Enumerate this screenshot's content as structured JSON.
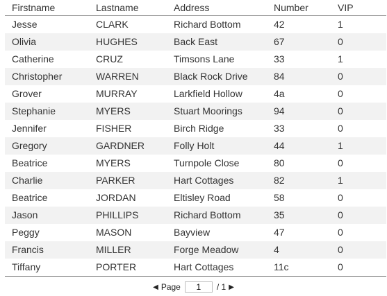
{
  "columns": {
    "firstname": "Firstname",
    "lastname": "Lastname",
    "address": "Address",
    "number": "Number",
    "vip": "VIP"
  },
  "rows": [
    {
      "firstname": "Jesse",
      "lastname": "CLARK",
      "address": "Richard Bottom",
      "number": "42",
      "vip": "1"
    },
    {
      "firstname": "Olivia",
      "lastname": "HUGHES",
      "address": "Back East",
      "number": "67",
      "vip": "0"
    },
    {
      "firstname": "Catherine",
      "lastname": "CRUZ",
      "address": "Timsons Lane",
      "number": "33",
      "vip": "1"
    },
    {
      "firstname": "Christopher",
      "lastname": "WARREN",
      "address": "Black Rock Drive",
      "number": "84",
      "vip": "0"
    },
    {
      "firstname": "Grover",
      "lastname": "MURRAY",
      "address": "Larkfield Hollow",
      "number": "4a",
      "vip": "0"
    },
    {
      "firstname": "Stephanie",
      "lastname": "MYERS",
      "address": "Stuart Moorings",
      "number": "94",
      "vip": "0"
    },
    {
      "firstname": "Jennifer",
      "lastname": "FISHER",
      "address": "Birch Ridge",
      "number": "33",
      "vip": "0"
    },
    {
      "firstname": "Gregory",
      "lastname": "GARDNER",
      "address": "Folly Holt",
      "number": "44",
      "vip": "1"
    },
    {
      "firstname": "Beatrice",
      "lastname": "MYERS",
      "address": "Turnpole Close",
      "number": "80",
      "vip": "0"
    },
    {
      "firstname": "Charlie",
      "lastname": "PARKER",
      "address": "Hart Cottages",
      "number": "82",
      "vip": "1"
    },
    {
      "firstname": "Beatrice",
      "lastname": "JORDAN",
      "address": "Eltisley Road",
      "number": "58",
      "vip": "0"
    },
    {
      "firstname": "Jason",
      "lastname": "PHILLIPS",
      "address": "Richard Bottom",
      "number": "35",
      "vip": "0"
    },
    {
      "firstname": "Peggy",
      "lastname": "MASON",
      "address": "Bayview",
      "number": "47",
      "vip": "0"
    },
    {
      "firstname": "Francis",
      "lastname": "MILLER",
      "address": "Forge Meadow",
      "number": "4",
      "vip": "0"
    },
    {
      "firstname": "Tiffany",
      "lastname": "PORTER",
      "address": "Hart Cottages",
      "number": "11c",
      "vip": "0"
    }
  ],
  "pager": {
    "prev_icon": "triangle-left-icon",
    "next_icon": "triangle-right-icon",
    "page_label": "Page",
    "current_page": "1",
    "total_label": "/ 1"
  },
  "colors": {
    "alt_row": "#f2f2f2",
    "text": "#333333",
    "header_border": "#9a9a9a"
  }
}
